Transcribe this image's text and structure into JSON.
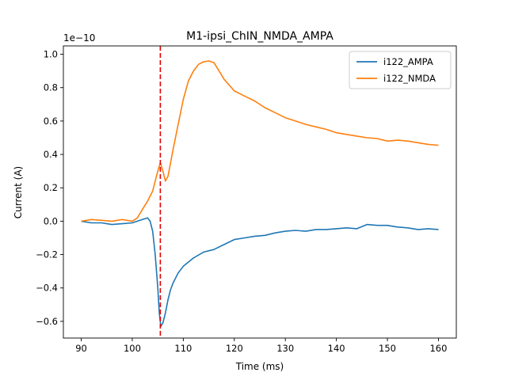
{
  "chart_data": {
    "type": "line",
    "title": "M1-ipsi_ChIN_NMDA_AMPA",
    "xlabel": "Time (ms)",
    "ylabel": "Current (A)",
    "y_scale_label": "1e−10",
    "xlim": [
      86.5,
      163.5
    ],
    "ylim": [
      -0.7,
      1.05
    ],
    "xticks": [
      90,
      100,
      110,
      120,
      130,
      140,
      150,
      160
    ],
    "xtick_labels": [
      "90",
      "100",
      "110",
      "120",
      "130",
      "140",
      "150",
      "160"
    ],
    "yticks": [
      -0.6,
      -0.4,
      -0.2,
      0.0,
      0.2,
      0.4,
      0.6,
      0.8,
      1.0
    ],
    "ytick_labels": [
      "−0.6",
      "−0.4",
      "−0.2",
      "0.0",
      "0.2",
      "0.4",
      "0.6",
      "0.8",
      "1.0"
    ],
    "grid": false,
    "legend_position": "top-right",
    "vline": {
      "x": 105.5,
      "color": "#e00000",
      "style": "dashed"
    },
    "series": [
      {
        "name": "i122_AMPA",
        "color": "#1f77b4",
        "x": [
          90,
          92,
          94,
          96,
          98,
          100,
          101,
          102,
          103,
          103.5,
          104,
          104.5,
          105,
          105.3,
          105.6,
          106,
          106.5,
          107,
          107.5,
          108,
          109,
          110,
          112,
          114,
          116,
          118,
          120,
          122,
          124,
          126,
          128,
          130,
          132,
          134,
          136,
          138,
          140,
          142,
          144,
          146,
          148,
          150,
          152,
          154,
          156,
          158,
          160
        ],
        "y": [
          0.0,
          -0.01,
          -0.01,
          -0.02,
          -0.015,
          -0.01,
          0.0,
          0.01,
          0.02,
          0.0,
          -0.06,
          -0.2,
          -0.4,
          -0.55,
          -0.63,
          -0.61,
          -0.55,
          -0.47,
          -0.41,
          -0.37,
          -0.31,
          -0.27,
          -0.22,
          -0.185,
          -0.17,
          -0.14,
          -0.11,
          -0.1,
          -0.09,
          -0.085,
          -0.07,
          -0.06,
          -0.055,
          -0.06,
          -0.05,
          -0.05,
          -0.045,
          -0.04,
          -0.045,
          -0.02,
          -0.025,
          -0.025,
          -0.035,
          -0.04,
          -0.05,
          -0.045,
          -0.05
        ]
      },
      {
        "name": "i122_NMDA",
        "color": "#ff7f0e",
        "x": [
          90,
          92,
          94,
          96,
          98,
          100,
          101,
          102,
          103,
          104,
          104.5,
          105,
          105.5,
          106,
          106.5,
          107,
          107.5,
          108,
          109,
          110,
          111,
          112,
          113,
          114,
          115,
          116,
          117,
          118,
          120,
          122,
          124,
          126,
          128,
          130,
          132,
          134,
          136,
          138,
          140,
          142,
          144,
          146,
          148,
          150,
          152,
          154,
          156,
          158,
          160
        ],
        "y": [
          0.0,
          0.01,
          0.005,
          0.0,
          0.01,
          0.0,
          0.02,
          0.07,
          0.12,
          0.18,
          0.24,
          0.3,
          0.35,
          0.3,
          0.24,
          0.27,
          0.35,
          0.43,
          0.58,
          0.73,
          0.84,
          0.9,
          0.94,
          0.955,
          0.96,
          0.95,
          0.9,
          0.85,
          0.78,
          0.75,
          0.72,
          0.68,
          0.65,
          0.62,
          0.6,
          0.58,
          0.565,
          0.55,
          0.53,
          0.52,
          0.51,
          0.5,
          0.495,
          0.48,
          0.485,
          0.48,
          0.47,
          0.46,
          0.455
        ]
      }
    ]
  }
}
